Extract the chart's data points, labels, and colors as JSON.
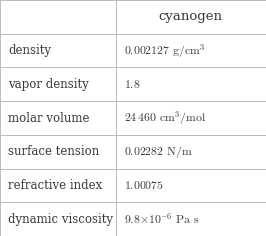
{
  "title": "cyanogen",
  "rows": [
    {
      "label": "density",
      "value": "$0.002127\\text{ g/cm}^3$"
    },
    {
      "label": "vapor density",
      "value": "$1.8$"
    },
    {
      "label": "molar volume",
      "value": "$24\\,460\\text{ cm}^3\\text{/mol}$"
    },
    {
      "label": "surface tension",
      "value": "$0.02282\\text{ N/m}$"
    },
    {
      "label": "refractive index",
      "value": "$1.00075$"
    },
    {
      "label": "dynamic viscosity",
      "value": "$9.8{\\times}10^{-6}\\text{ Pa s}$"
    }
  ],
  "bg_color": "#ffffff",
  "grid_color": "#bbbbbb",
  "text_color": "#3a3a3a",
  "label_fontsize": 8.5,
  "value_fontsize": 8.5,
  "title_fontsize": 9.5,
  "col_split": 0.435,
  "figsize": [
    2.66,
    2.36
  ],
  "dpi": 100
}
